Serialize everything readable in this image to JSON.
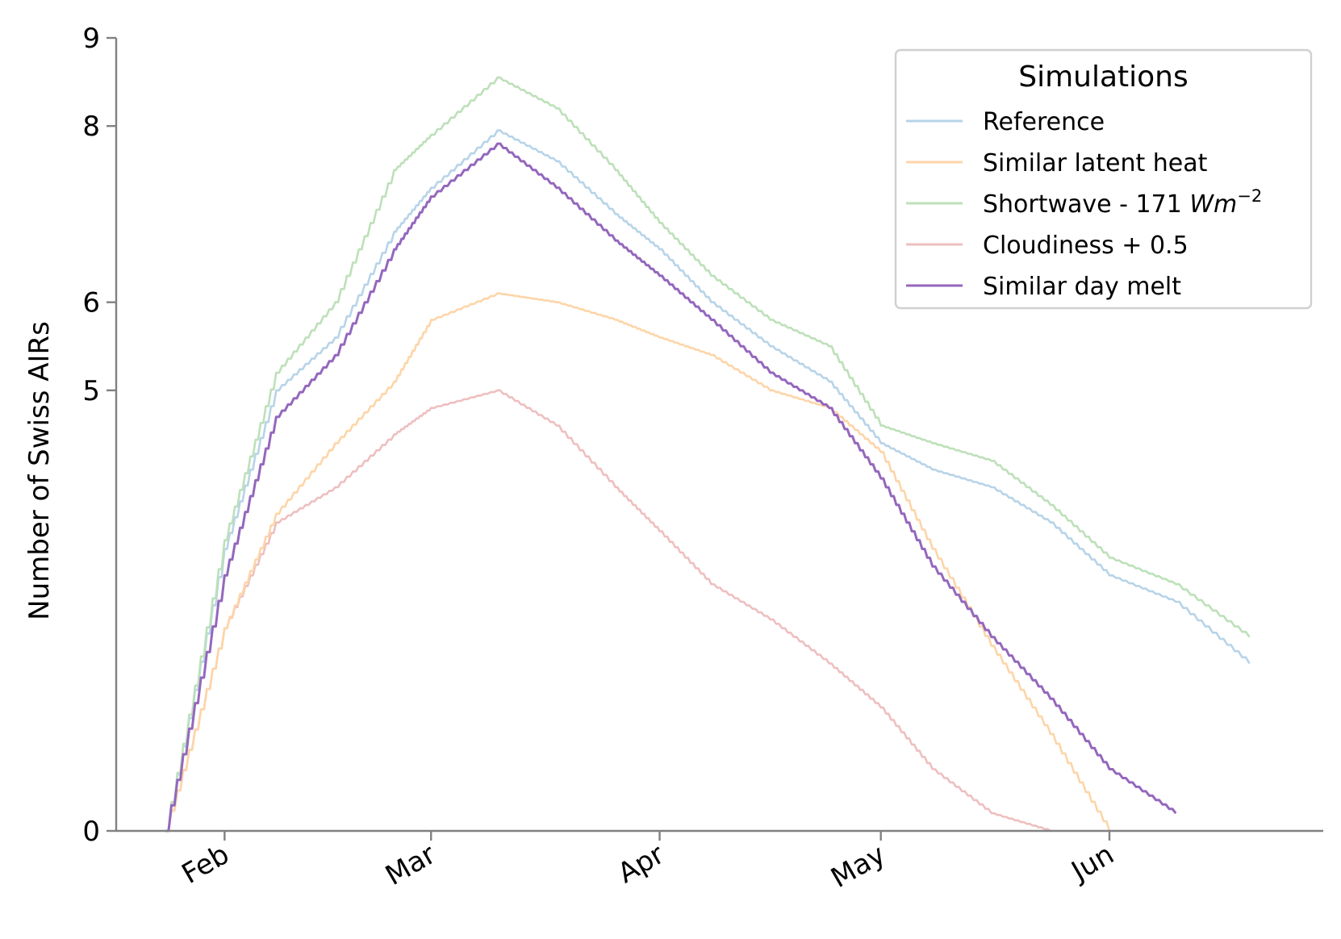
{
  "chart_data": {
    "type": "line",
    "title": "",
    "xlabel": "",
    "ylabel": "Number of Swiss AIRs",
    "x_ticks": [
      "Feb",
      "Mar",
      "Apr",
      "May",
      "Jun"
    ],
    "x_tick_dates": [
      "02-01",
      "03-01",
      "04-01",
      "05-01",
      "06-01"
    ],
    "x_range": [
      "01-24",
      "06-28"
    ],
    "y_ticks": [
      0,
      5,
      6,
      8,
      9
    ],
    "ylim": [
      0,
      9
    ],
    "grid": false,
    "legend": {
      "title": "Simulations",
      "placement": "top-right"
    },
    "x": [
      "01-24",
      "02-01",
      "02-08",
      "02-16",
      "02-24",
      "03-01",
      "03-10",
      "03-18",
      "03-26",
      "04-01",
      "04-08",
      "04-16",
      "04-24",
      "05-01",
      "05-08",
      "05-16",
      "05-24",
      "06-01",
      "06-10",
      "06-20"
    ],
    "series": [
      {
        "name": "Reference",
        "color": "#b7d4e8",
        "values": [
          0,
          3.2,
          5.0,
          5.6,
          6.8,
          7.3,
          7.95,
          7.6,
          7.0,
          6.6,
          6.0,
          5.5,
          5.1,
          4.4,
          4.1,
          3.9,
          3.5,
          2.9,
          2.6,
          1.9
        ]
      },
      {
        "name": "Similar latent heat",
        "color": "#fdd5a8",
        "values": [
          0,
          2.3,
          3.6,
          4.4,
          5.1,
          5.8,
          6.1,
          6.0,
          5.8,
          5.6,
          5.4,
          5.0,
          4.8,
          4.3,
          3.2,
          2.1,
          1.1,
          0.0,
          null,
          null
        ]
      },
      {
        "name": "Shortwave - 171 $W m^{-2}$",
        "label": "Shortwave - 171 ",
        "label_math": "Wm",
        "label_sup": "−2",
        "color": "#bde0b9",
        "values": [
          0,
          3.3,
          5.2,
          6.0,
          7.5,
          7.9,
          8.55,
          8.2,
          7.5,
          6.9,
          6.3,
          5.8,
          5.5,
          4.6,
          4.4,
          4.2,
          3.7,
          3.1,
          2.8,
          2.2
        ]
      },
      {
        "name": "Cloudiness + 0.5",
        "color": "#eebfbf",
        "values": [
          0,
          2.3,
          3.5,
          3.9,
          4.5,
          4.8,
          5.0,
          4.6,
          3.9,
          3.4,
          2.8,
          2.4,
          1.9,
          1.4,
          0.7,
          0.2,
          0.0,
          null,
          null,
          null
        ]
      },
      {
        "name": "Similar day melt",
        "color": "#9467bd",
        "values": [
          0,
          2.9,
          4.7,
          5.4,
          6.6,
          7.2,
          7.8,
          7.3,
          6.7,
          6.3,
          5.8,
          5.2,
          4.8,
          4.0,
          3.0,
          2.2,
          1.5,
          0.7,
          0.2,
          null
        ]
      }
    ]
  }
}
